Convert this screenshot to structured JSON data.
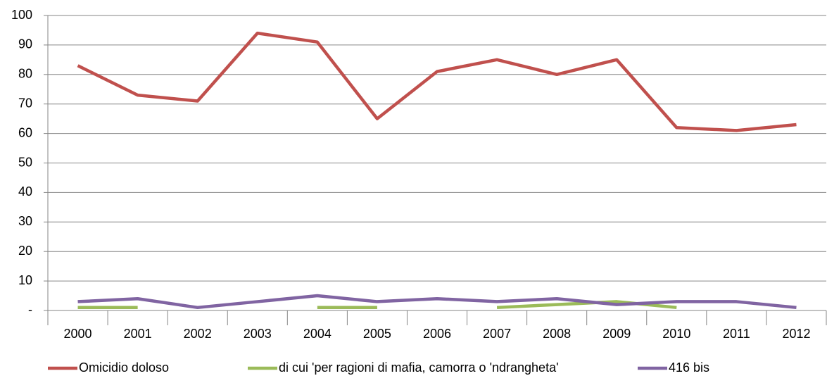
{
  "chart_data": {
    "type": "line",
    "categories": [
      "2000",
      "2001",
      "2002",
      "2003",
      "2004",
      "2005",
      "2006",
      "2007",
      "2008",
      "2009",
      "2010",
      "2011",
      "2012"
    ],
    "series": [
      {
        "name": "Omicidio doloso",
        "color": "#c0504d",
        "values": [
          83,
          73,
          71,
          94,
          91,
          65,
          81,
          85,
          80,
          85,
          62,
          61,
          63
        ]
      },
      {
        "name": "di cui 'per ragioni di mafia, camorra o 'ndrangheta'",
        "color": "#9bbb59",
        "values": [
          1,
          1,
          null,
          null,
          1,
          1,
          null,
          1,
          2,
          3,
          1,
          null,
          null
        ]
      },
      {
        "name": "416 bis",
        "color": "#8064a2",
        "values": [
          3,
          4,
          1,
          3,
          5,
          3,
          4,
          3,
          4,
          2,
          3,
          3,
          1
        ]
      }
    ],
    "ylim": [
      0,
      100
    ],
    "yticks": [
      {
        "value": 0,
        "label": "-"
      },
      10,
      20,
      30,
      40,
      50,
      60,
      70,
      80,
      90,
      100
    ],
    "grid": true,
    "legend": "bottom"
  }
}
